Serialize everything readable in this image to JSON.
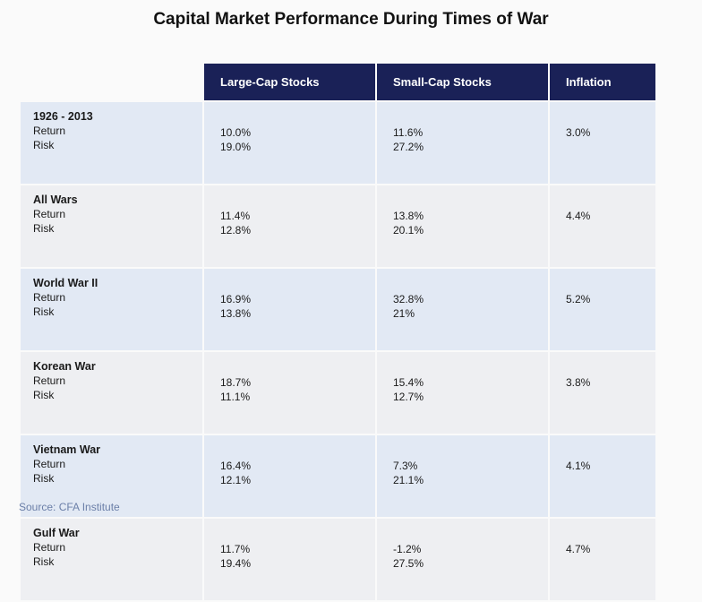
{
  "title": "Capital Market Performance During Times of War",
  "source": "Source: CFA Institute",
  "chart_data": {
    "type": "table",
    "title": "Capital Market Performance During Times of War",
    "columns": [
      "Large-Cap Stocks",
      "Small-Cap Stocks",
      "Inflation"
    ],
    "row_labels": [
      "Return",
      "Risk"
    ],
    "rows": [
      {
        "period": "1926 - 2013",
        "large_return": "10.0%",
        "large_risk": "19.0%",
        "small_return": "11.6%",
        "small_risk": "27.2%",
        "inflation": "3.0%"
      },
      {
        "period": "All Wars",
        "large_return": "11.4%",
        "large_risk": "12.8%",
        "small_return": "13.8%",
        "small_risk": "20.1%",
        "inflation": "4.4%"
      },
      {
        "period": "World War II",
        "large_return": "16.9%",
        "large_risk": "13.8%",
        "small_return": "32.8%",
        "small_risk": "21%",
        "inflation": "5.2%"
      },
      {
        "period": "Korean War",
        "large_return": "18.7%",
        "large_risk": "11.1%",
        "small_return": "15.4%",
        "small_risk": "12.7%",
        "inflation": "3.8%"
      },
      {
        "period": "Vietnam War",
        "large_return": "16.4%",
        "large_risk": "12.1%",
        "small_return": "7.3%",
        "small_risk": "21.1%",
        "inflation": "4.1%"
      },
      {
        "period": "Gulf War",
        "large_return": "11.7%",
        "large_risk": "19.4%",
        "small_return": "-1.2%",
        "small_risk": "27.5%",
        "inflation": "4.7%"
      }
    ]
  },
  "colors": {
    "header_bg": "#1a2157",
    "row_shade": "#e2e9f4",
    "row_plain": "#eeeff2",
    "source_text": "#6b7fa8"
  }
}
